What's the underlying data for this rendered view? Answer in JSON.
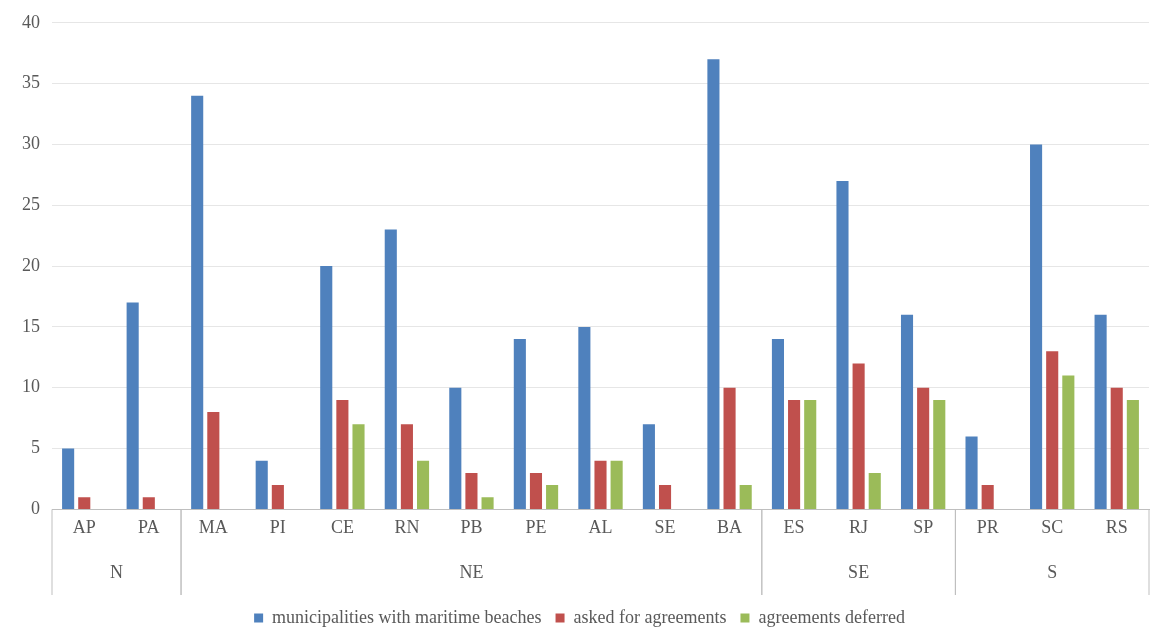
{
  "chart_data": {
    "type": "bar",
    "categories": [
      "AP",
      "PA",
      "MA",
      "PI",
      "CE",
      "RN",
      "PB",
      "PE",
      "AL",
      "SE",
      "BA",
      "ES",
      "RJ",
      "SP",
      "PR",
      "SC",
      "RS"
    ],
    "series": [
      {
        "name": "municipalities with maritime beaches",
        "color": "#4f81bd",
        "values": [
          5,
          17,
          34,
          4,
          20,
          23,
          10,
          14,
          15,
          7,
          37,
          14,
          27,
          16,
          6,
          30,
          16
        ]
      },
      {
        "name": "asked for agreements",
        "color": "#c0504d",
        "values": [
          1,
          1,
          8,
          2,
          9,
          7,
          3,
          3,
          4,
          2,
          10,
          9,
          12,
          10,
          2,
          13,
          10
        ]
      },
      {
        "name": "agreements deferred",
        "color": "#9bbb59",
        "values": [
          0,
          0,
          0,
          0,
          7,
          4,
          1,
          2,
          4,
          0,
          2,
          9,
          3,
          9,
          0,
          11,
          9
        ]
      }
    ],
    "annotations": [
      "N",
      "NE",
      "SE",
      "S"
    ],
    "ylim": [
      0,
      40
    ],
    "yticks": [
      0,
      5,
      10,
      15,
      20,
      25,
      30,
      35,
      40
    ],
    "grid": "y",
    "legend": "bottom"
  }
}
